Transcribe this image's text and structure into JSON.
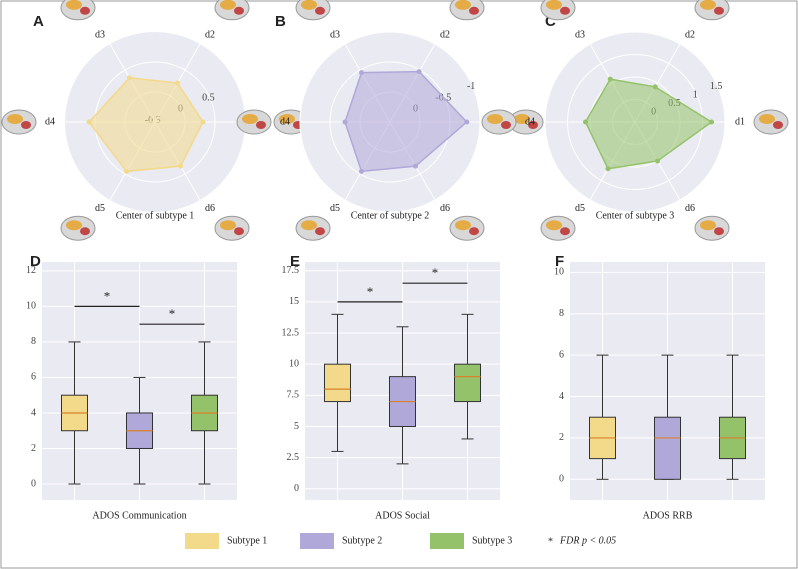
{
  "chart_data": [
    {
      "type": "radar",
      "panel": "A",
      "title": "Center of subtype 1",
      "axes": [
        "d1",
        "d2",
        "d3",
        "d4",
        "d5",
        "d6"
      ],
      "values": [
        0.3,
        0.25,
        0.35,
        0.6,
        0.45,
        0.35
      ],
      "color": "#f3d98a",
      "rlim": [
        -0.5,
        1.0
      ],
      "rticks": [
        -0.5,
        0.0,
        0.5
      ]
    },
    {
      "type": "radar",
      "panel": "B",
      "title": "Center of subtype 2",
      "axes": [
        "d1",
        "d2",
        "d3",
        "d4",
        "d5",
        "d6"
      ],
      "values": [
        -0.78,
        -0.47,
        -0.45,
        -0.25,
        -0.45,
        -0.35
      ],
      "color": "#b0a8d8",
      "rlim": [
        0.5,
        -1.0
      ],
      "rticks": [
        0.0,
        -0.5,
        -1.0
      ]
    },
    {
      "type": "radar",
      "panel": "C",
      "title": "Center of subtype 3",
      "axes": [
        "d1",
        "d2",
        "d3",
        "d4",
        "d5",
        "d6"
      ],
      "values": [
        1.2,
        0.4,
        0.6,
        0.6,
        0.7,
        0.5
      ],
      "color": "#94c26a",
      "rlim": [
        -0.5,
        1.5
      ],
      "rticks": [
        0.0,
        0.5,
        1.0,
        1.5
      ]
    },
    {
      "type": "box",
      "panel": "D",
      "xlabel": "ADOS Communication",
      "ylim": [
        -0.9,
        12.5
      ],
      "yticks": [
        0,
        2,
        4,
        6,
        8,
        10,
        12
      ],
      "grid": true,
      "boxes": [
        {
          "min": 0,
          "q1": 3,
          "median": 4,
          "q3": 5,
          "max": 8
        },
        {
          "min": 0,
          "q1": 2,
          "median": 3,
          "q3": 4,
          "max": 6
        },
        {
          "min": 0,
          "q1": 3,
          "median": 4,
          "q3": 5,
          "max": 8
        }
      ],
      "annotations": [
        {
          "from": 0,
          "to": 1,
          "y": 10,
          "text": "*"
        },
        {
          "from": 1,
          "to": 2,
          "y": 9,
          "text": "*"
        }
      ]
    },
    {
      "type": "box",
      "panel": "E",
      "xlabel": "ADOS Social",
      "ylim": [
        -0.9,
        18.2
      ],
      "yticks": [
        0,
        2.5,
        5,
        7.5,
        10,
        12.5,
        15,
        17.5
      ],
      "grid": true,
      "boxes": [
        {
          "min": 3,
          "q1": 7,
          "median": 8,
          "q3": 10,
          "max": 14
        },
        {
          "min": 2,
          "q1": 5,
          "median": 7,
          "q3": 9,
          "max": 13
        },
        {
          "min": 4,
          "q1": 7,
          "median": 9,
          "q3": 10,
          "max": 14
        }
      ],
      "annotations": [
        {
          "from": 0,
          "to": 1,
          "y": 15,
          "text": "*"
        },
        {
          "from": 1,
          "to": 2,
          "y": 16.5,
          "text": "*"
        }
      ]
    },
    {
      "type": "box",
      "panel": "F",
      "xlabel": "ADOS RRB",
      "ylim": [
        -1,
        10.5
      ],
      "yticks": [
        0,
        2,
        4,
        6,
        8,
        10
      ],
      "grid": true,
      "boxes": [
        {
          "min": 0,
          "q1": 1,
          "median": 2,
          "q3": 3,
          "max": 6
        },
        {
          "min": 0,
          "q1": 0,
          "median": 2,
          "q3": 3,
          "max": 6
        },
        {
          "min": 0,
          "q1": 1,
          "median": 2,
          "q3": 3,
          "max": 6
        }
      ],
      "annotations": []
    }
  ],
  "legend": {
    "items": [
      {
        "name": "Subtype 1",
        "color": "#f3d98a"
      },
      {
        "name": "Subtype 2",
        "color": "#b0a8d8"
      },
      {
        "name": "Subtype 3",
        "color": "#94c26a"
      }
    ],
    "note_symbol": "*",
    "note": "FDR p < 0.05"
  }
}
